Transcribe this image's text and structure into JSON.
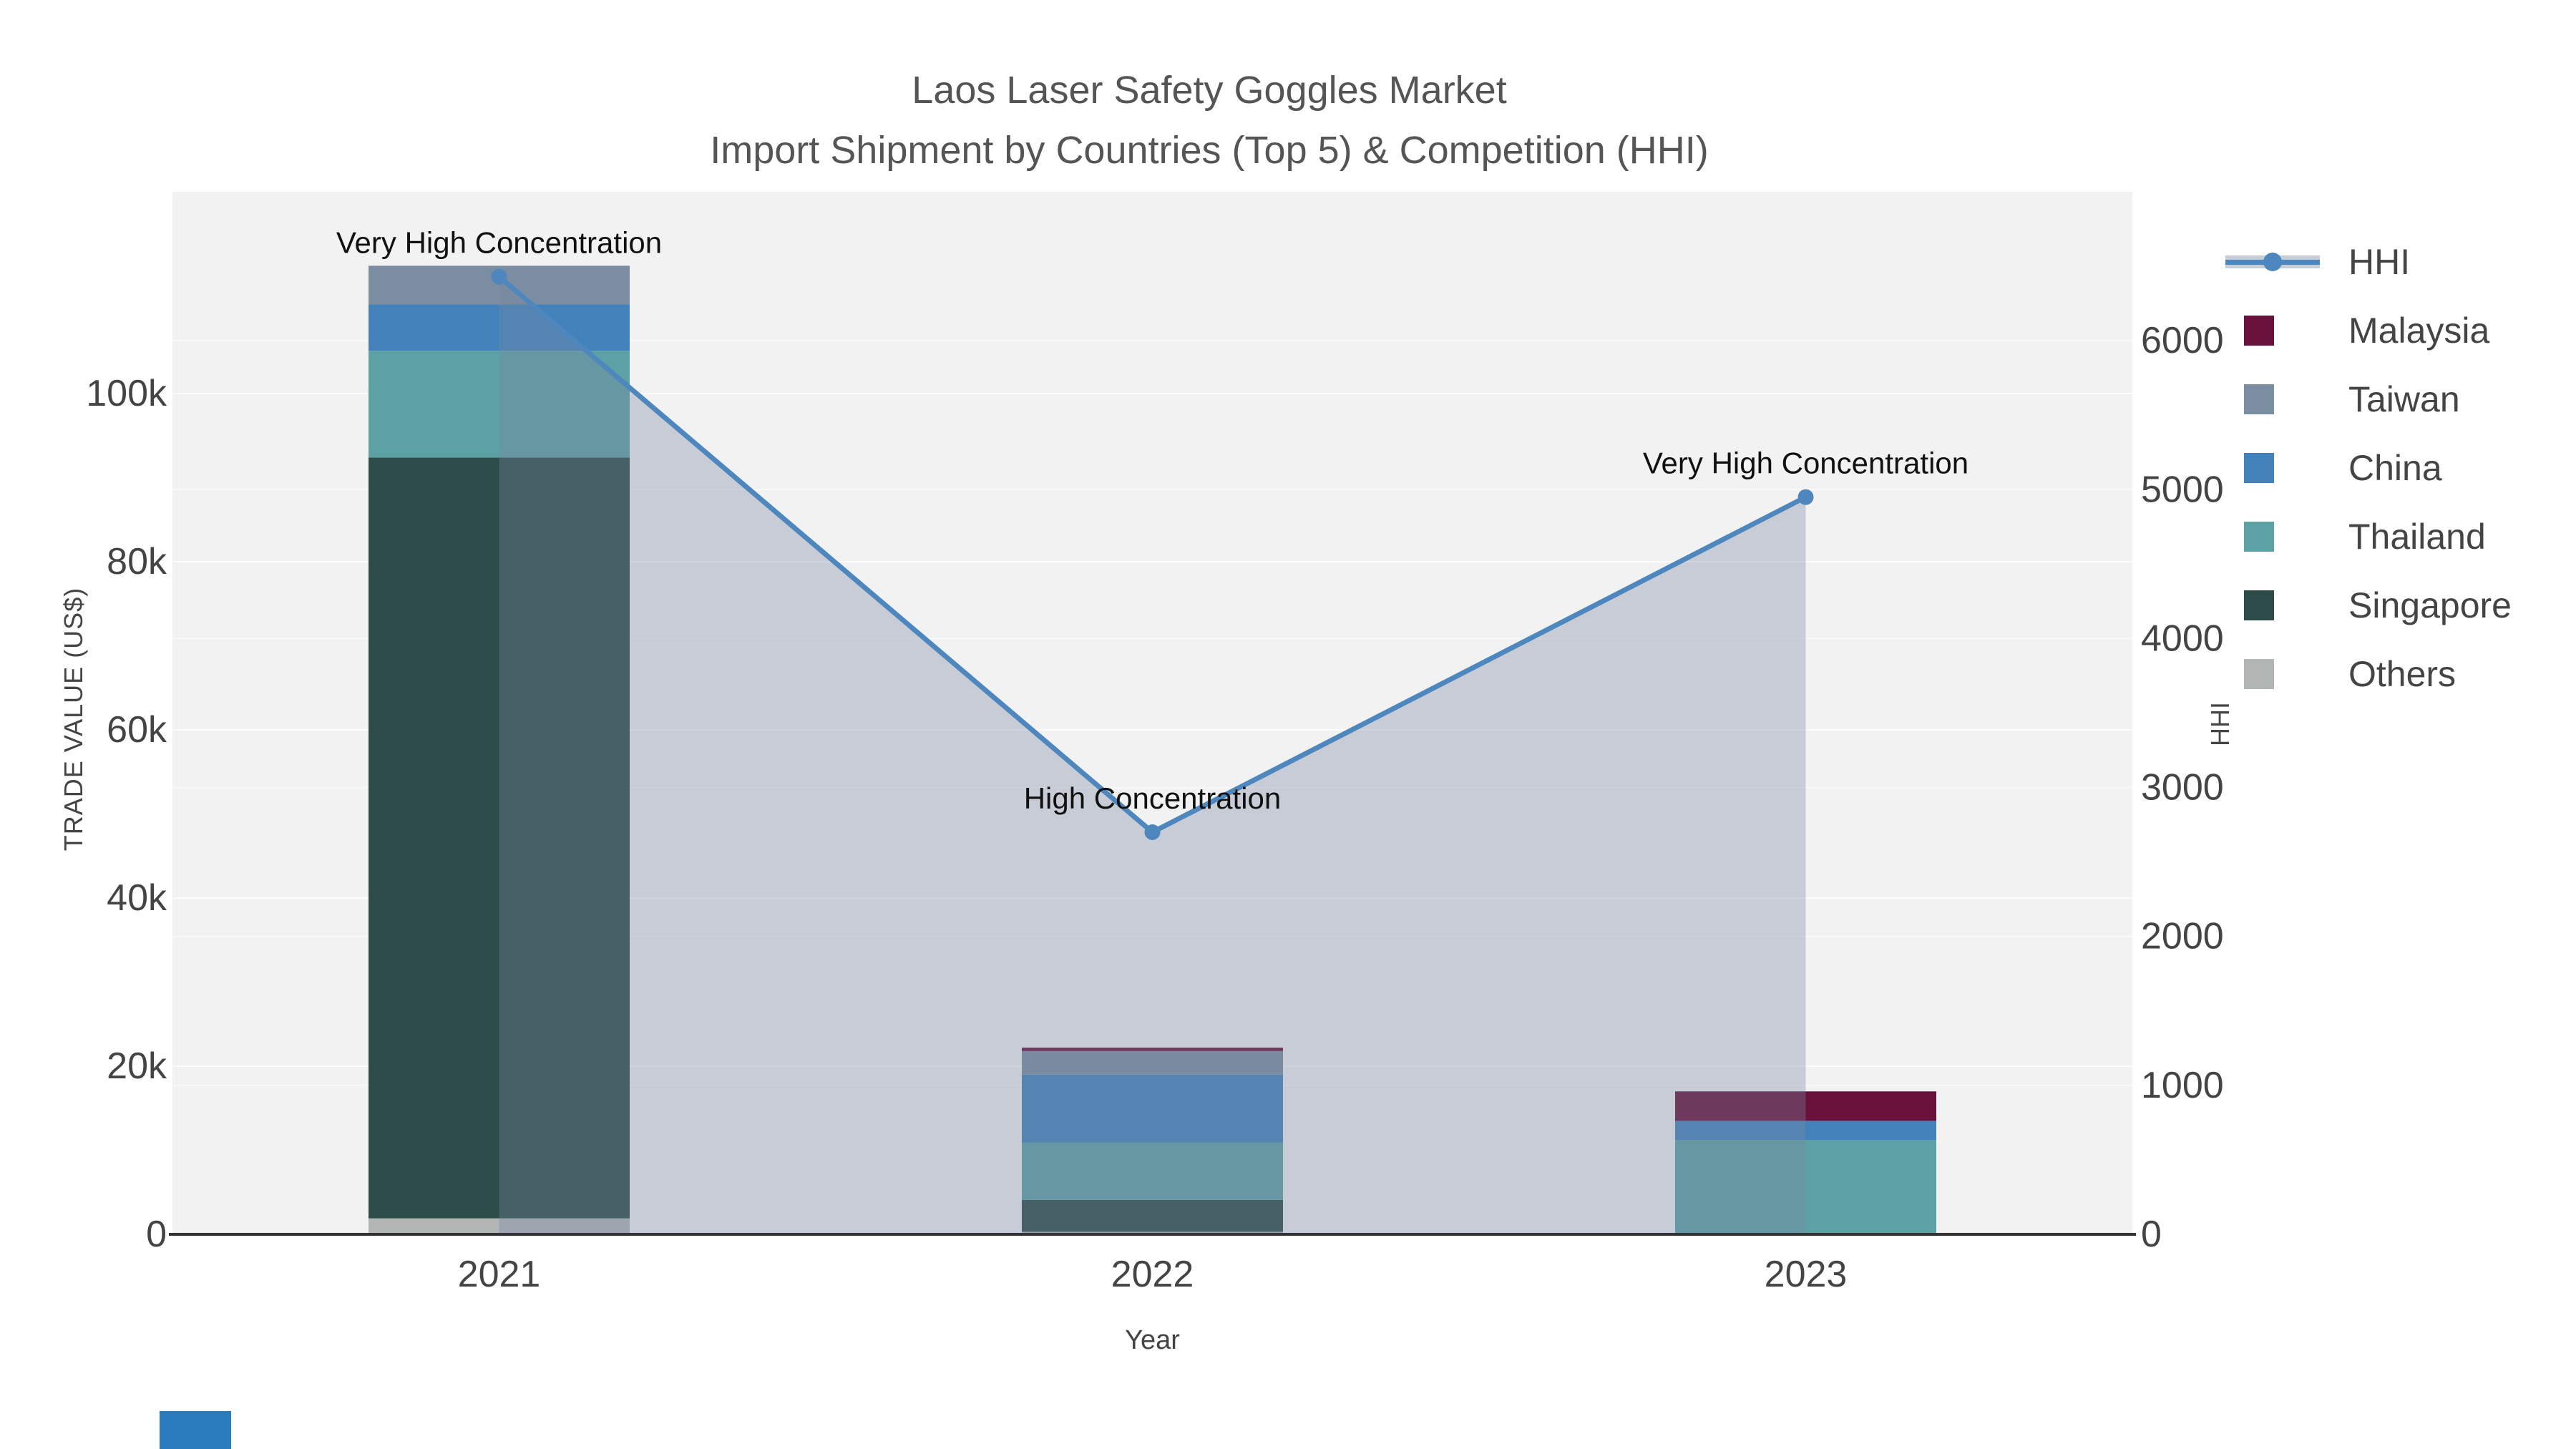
{
  "title": {
    "line1": "Laos Laser Safety Goggles Market",
    "line2": "Import Shipment by Countries (Top 5) & Competition (HHI)"
  },
  "axes": {
    "x": {
      "title": "Year",
      "categories": [
        "2021",
        "2022",
        "2023"
      ]
    },
    "y_left": {
      "title": "TRADE VALUE (US$)",
      "tick_labels": [
        "0",
        "20k",
        "40k",
        "60k",
        "80k",
        "100k"
      ],
      "tick_values": [
        0,
        20000,
        40000,
        60000,
        80000,
        100000
      ],
      "range": [
        0,
        124000
      ]
    },
    "y_right": {
      "title": "HHI",
      "tick_labels": [
        "0",
        "1000",
        "2000",
        "3000",
        "4000",
        "5000",
        "6000"
      ],
      "tick_values": [
        0,
        1000,
        2000,
        3000,
        4000,
        5000,
        6000
      ],
      "range": [
        0,
        7000
      ]
    }
  },
  "legend": [
    {
      "label": "HHI",
      "type": "line",
      "color": "#4D87BD",
      "band": "#C5CDD9"
    },
    {
      "label": "Malaysia",
      "type": "square",
      "color": "#68113A"
    },
    {
      "label": "Taiwan",
      "type": "square",
      "color": "#7B8DA0"
    },
    {
      "label": "China",
      "type": "square",
      "color": "#4381BA"
    },
    {
      "label": "Thailand",
      "type": "square",
      "color": "#5CA1A3"
    },
    {
      "label": "Singapore",
      "type": "square",
      "color": "#2D4B48"
    },
    {
      "label": "Others",
      "type": "square",
      "color": "#B1B6B4"
    }
  ],
  "chart_data": {
    "type": "bar",
    "subtype": "stacked-bars-with-secondary-line",
    "categories": [
      "2021",
      "2022",
      "2023"
    ],
    "bar_series": [
      {
        "name": "Others",
        "color": "#B1B6B4",
        "values": [
          1900,
          300,
          0
        ]
      },
      {
        "name": "Singapore",
        "color": "#2D4B48",
        "values": [
          90500,
          3800,
          0
        ]
      },
      {
        "name": "Thailand",
        "color": "#5CA1A3",
        "values": [
          12700,
          6800,
          11200
        ]
      },
      {
        "name": "China",
        "color": "#4381BA",
        "values": [
          5500,
          8100,
          2300
        ]
      },
      {
        "name": "Taiwan",
        "color": "#7B8DA0",
        "values": [
          4600,
          2800,
          0
        ]
      },
      {
        "name": "Malaysia",
        "color": "#68113A",
        "values": [
          0,
          400,
          3500
        ]
      }
    ],
    "line_series": {
      "name": "HHI",
      "color": "#4D87BD",
      "fill_color": "rgba(119,136,162,0.35)",
      "values": [
        6430,
        2700,
        4950
      ]
    },
    "annotations": [
      "Very High Concentration",
      "High Concentration",
      "Very High Concentration"
    ],
    "title": "Laos Laser Safety Goggles Market — Import Shipment by Countries (Top 5) & Competition (HHI)",
    "xlabel": "Year",
    "ylabel": "TRADE VALUE (US$)",
    "ylabel_right": "HHI",
    "ylim_left": [
      0,
      124000
    ],
    "ylim_right": [
      0,
      7000
    ],
    "legend_position": "right",
    "grid": true
  },
  "style": {
    "plot_bg": "#F2F2F3",
    "grid_color": "#FFFFFF",
    "axis_color": "#333333",
    "tick_text": "#444444",
    "title_text": "#555558",
    "annotation_text": "#111111"
  }
}
